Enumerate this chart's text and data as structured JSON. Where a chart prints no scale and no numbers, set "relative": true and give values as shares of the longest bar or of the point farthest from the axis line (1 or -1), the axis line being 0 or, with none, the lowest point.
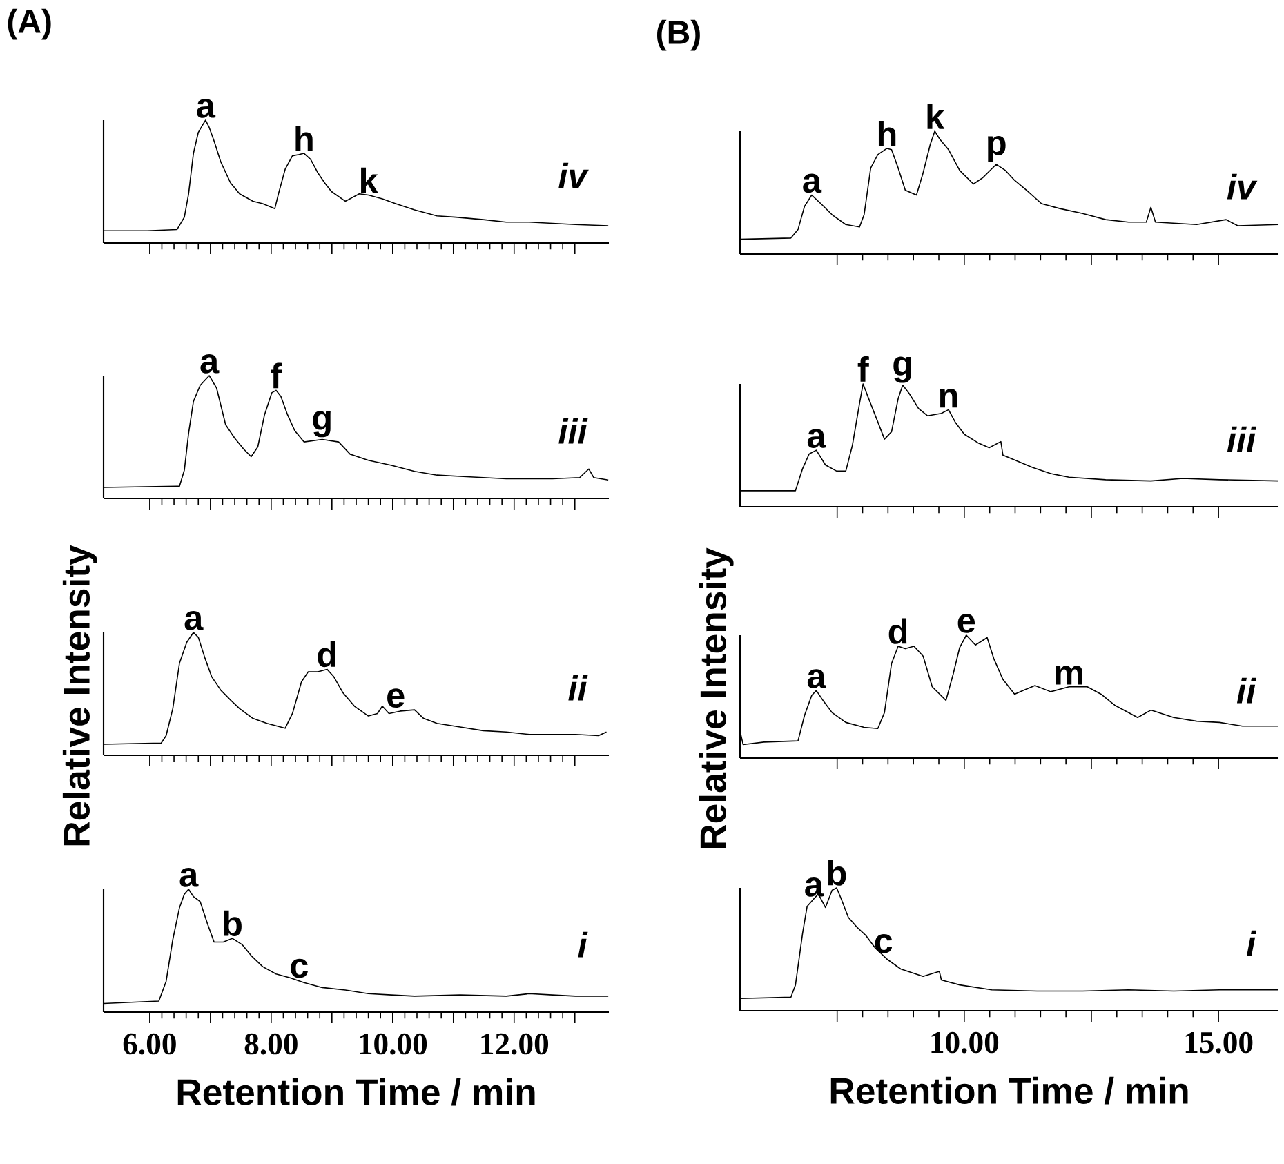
{
  "chart_data": [
    {
      "type": "line",
      "relative": true,
      "title": "(A)",
      "subtitle": "iv",
      "tick_labels": false,
      "xlim": [
        5.24,
        13.56
      ],
      "xticks": [
        {
          "value": 6,
          "label": null
        },
        {
          "value": 7,
          "label": null
        },
        {
          "value": 8,
          "label": null
        },
        {
          "value": 9,
          "label": null
        },
        {
          "value": 10,
          "label": null
        },
        {
          "value": 11,
          "label": null
        },
        {
          "value": 12,
          "label": null
        },
        {
          "value": 13,
          "label": null
        }
      ],
      "x": [
        5.24,
        5.96,
        6.45,
        6.57,
        6.64,
        6.72,
        6.8,
        6.87,
        6.92,
        6.98,
        7.06,
        7.17,
        7.33,
        7.48,
        7.7,
        7.86,
        8.06,
        8.12,
        8.23,
        8.35,
        8.46,
        8.54,
        8.65,
        8.77,
        8.88,
        8.99,
        9.22,
        9.45,
        9.6,
        9.83,
        10.05,
        10.36,
        10.73,
        11.04,
        11.49,
        11.87,
        12.25,
        12.63,
        13.01,
        13.55
      ],
      "series": [
        {
          "color": "#000000",
          "values": [
            0.1,
            0.1,
            0.11,
            0.21,
            0.4,
            0.73,
            0.9,
            0.96,
            1.0,
            0.94,
            0.83,
            0.66,
            0.49,
            0.4,
            0.34,
            0.32,
            0.28,
            0.4,
            0.6,
            0.71,
            0.72,
            0.73,
            0.68,
            0.57,
            0.49,
            0.42,
            0.34,
            0.4,
            0.39,
            0.36,
            0.32,
            0.27,
            0.22,
            0.21,
            0.19,
            0.17,
            0.17,
            0.16,
            0.15,
            0.14
          ]
        }
      ],
      "annotations": [
        {
          "text": "a",
          "x": 6.92,
          "y": 1.0
        },
        {
          "text": "h",
          "x": 8.54,
          "y": 0.73
        },
        {
          "text": "k",
          "x": 9.6,
          "y": 0.39
        }
      ]
    },
    {
      "type": "line",
      "relative": true,
      "subtitle": "iii",
      "tick_labels": false,
      "xlim": [
        5.24,
        13.56
      ],
      "xticks": [
        {
          "value": 6,
          "label": null
        },
        {
          "value": 7,
          "label": null
        },
        {
          "value": 8,
          "label": null
        },
        {
          "value": 9,
          "label": null
        },
        {
          "value": 10,
          "label": null
        },
        {
          "value": 11,
          "label": null
        },
        {
          "value": 12,
          "label": null
        },
        {
          "value": 13,
          "label": null
        }
      ],
      "x": [
        5.24,
        6.49,
        6.57,
        6.64,
        6.72,
        6.83,
        6.98,
        7.1,
        7.25,
        7.4,
        7.55,
        7.67,
        7.78,
        7.89,
        8.01,
        8.08,
        8.16,
        8.27,
        8.39,
        8.54,
        8.84,
        9.11,
        9.3,
        9.6,
        9.98,
        10.36,
        10.73,
        11.11,
        11.49,
        11.87,
        12.25,
        12.63,
        13.08,
        13.23,
        13.31,
        13.55
      ],
      "series": [
        {
          "color": "#000000",
          "values": [
            0.09,
            0.1,
            0.23,
            0.53,
            0.79,
            0.92,
            1.0,
            0.9,
            0.6,
            0.49,
            0.4,
            0.34,
            0.42,
            0.68,
            0.86,
            0.88,
            0.83,
            0.68,
            0.55,
            0.46,
            0.48,
            0.46,
            0.36,
            0.31,
            0.27,
            0.22,
            0.19,
            0.18,
            0.17,
            0.16,
            0.16,
            0.16,
            0.17,
            0.24,
            0.17,
            0.15
          ]
        }
      ],
      "annotations": [
        {
          "text": "a",
          "x": 6.98,
          "y": 1.0
        },
        {
          "text": "f",
          "x": 8.08,
          "y": 0.88
        },
        {
          "text": "g",
          "x": 8.84,
          "y": 0.48
        }
      ]
    },
    {
      "type": "line",
      "relative": true,
      "subtitle": "ii",
      "ylabel": "Relative Intensity",
      "tick_labels": false,
      "xlim": [
        5.24,
        13.56
      ],
      "xticks": [
        {
          "value": 6,
          "label": null
        },
        {
          "value": 7,
          "label": null
        },
        {
          "value": 8,
          "label": null
        },
        {
          "value": 9,
          "label": null
        },
        {
          "value": 10,
          "label": null
        },
        {
          "value": 11,
          "label": null
        },
        {
          "value": 12,
          "label": null
        },
        {
          "value": 13,
          "label": null
        }
      ],
      "x": [
        5.24,
        6.19,
        6.27,
        6.38,
        6.49,
        6.61,
        6.72,
        6.8,
        6.91,
        7.02,
        7.17,
        7.33,
        7.48,
        7.7,
        7.93,
        8.23,
        8.35,
        8.5,
        8.61,
        8.77,
        8.92,
        9.03,
        9.18,
        9.37,
        9.6,
        9.75,
        9.83,
        9.94,
        10.13,
        10.36,
        10.51,
        10.73,
        11.11,
        11.49,
        11.87,
        12.25,
        12.63,
        13.01,
        13.39,
        13.52
      ],
      "series": [
        {
          "color": "#000000",
          "values": [
            0.09,
            0.1,
            0.16,
            0.38,
            0.75,
            0.92,
            1.0,
            0.96,
            0.79,
            0.64,
            0.53,
            0.45,
            0.38,
            0.3,
            0.26,
            0.22,
            0.34,
            0.6,
            0.68,
            0.68,
            0.7,
            0.64,
            0.51,
            0.4,
            0.32,
            0.34,
            0.4,
            0.34,
            0.36,
            0.37,
            0.3,
            0.26,
            0.23,
            0.2,
            0.19,
            0.17,
            0.17,
            0.17,
            0.16,
            0.19
          ]
        }
      ],
      "annotations": [
        {
          "text": "a",
          "x": 6.72,
          "y": 1.0
        },
        {
          "text": "d",
          "x": 8.92,
          "y": 0.7
        },
        {
          "text": "e",
          "x": 10.05,
          "y": 0.37
        }
      ]
    },
    {
      "type": "line",
      "relative": true,
      "subtitle": "i",
      "xlabel": "Retention Time / min",
      "tick_labels": "x",
      "xlim": [
        5.24,
        13.56
      ],
      "xticks": [
        {
          "value": 6,
          "label": "6.00"
        },
        {
          "value": 7,
          "label": null
        },
        {
          "value": 8,
          "label": "8.00"
        },
        {
          "value": 9,
          "label": null
        },
        {
          "value": 10,
          "label": "10.00"
        },
        {
          "value": 11,
          "label": null
        },
        {
          "value": 12,
          "label": "12.00"
        },
        {
          "value": 13,
          "label": null
        }
      ],
      "x": [
        5.24,
        6.15,
        6.27,
        6.38,
        6.49,
        6.57,
        6.64,
        6.72,
        6.83,
        6.95,
        7.06,
        7.21,
        7.36,
        7.52,
        7.67,
        7.86,
        8.08,
        8.31,
        8.54,
        8.84,
        9.22,
        9.6,
        9.98,
        10.36,
        11.11,
        11.87,
        12.25,
        12.63,
        13.01,
        13.55
      ],
      "series": [
        {
          "color": "#000000",
          "values": [
            0.07,
            0.09,
            0.25,
            0.59,
            0.85,
            0.96,
            1.0,
            0.94,
            0.9,
            0.72,
            0.57,
            0.57,
            0.6,
            0.55,
            0.46,
            0.37,
            0.31,
            0.28,
            0.24,
            0.2,
            0.18,
            0.15,
            0.14,
            0.13,
            0.14,
            0.13,
            0.15,
            0.14,
            0.13,
            0.13
          ]
        }
      ],
      "annotations": [
        {
          "text": "a",
          "x": 6.64,
          "y": 1.0
        },
        {
          "text": "b",
          "x": 7.36,
          "y": 0.6
        },
        {
          "text": "c",
          "x": 8.46,
          "y": 0.26
        }
      ]
    },
    {
      "type": "line",
      "relative": true,
      "title": "(B)",
      "subtitle": "iv",
      "tick_labels": false,
      "xlim": [
        5.59,
        16.18
      ],
      "xticks": [
        {
          "value": 7.5,
          "label": null
        },
        {
          "value": 10,
          "label": null
        },
        {
          "value": 12.5,
          "label": null
        },
        {
          "value": 15,
          "label": null
        }
      ],
      "x": [
        5.59,
        6.59,
        6.73,
        6.86,
        7.0,
        7.18,
        7.4,
        7.67,
        7.94,
        8.03,
        8.16,
        8.3,
        8.48,
        8.57,
        8.7,
        8.84,
        9.06,
        9.19,
        9.33,
        9.42,
        9.51,
        9.69,
        9.91,
        10.18,
        10.36,
        10.63,
        10.81,
        10.99,
        11.25,
        11.52,
        11.88,
        12.33,
        12.78,
        13.23,
        13.58,
        13.67,
        13.76,
        14.57,
        15.15,
        15.38,
        16.18
      ],
      "series": [
        {
          "color": "#000000",
          "values": [
            0.12,
            0.13,
            0.2,
            0.39,
            0.48,
            0.41,
            0.32,
            0.24,
            0.22,
            0.32,
            0.7,
            0.81,
            0.86,
            0.85,
            0.7,
            0.52,
            0.48,
            0.66,
            0.89,
            1.0,
            0.94,
            0.85,
            0.68,
            0.57,
            0.62,
            0.73,
            0.68,
            0.6,
            0.51,
            0.41,
            0.37,
            0.33,
            0.28,
            0.26,
            0.26,
            0.38,
            0.26,
            0.24,
            0.28,
            0.23,
            0.24
          ]
        }
      ],
      "annotations": [
        {
          "text": "a",
          "x": 7.0,
          "y": 0.48
        },
        {
          "text": "h",
          "x": 8.48,
          "y": 0.86
        },
        {
          "text": "k",
          "x": 9.42,
          "y": 1.0
        },
        {
          "text": "p",
          "x": 10.63,
          "y": 0.73
        }
      ]
    },
    {
      "type": "line",
      "relative": true,
      "subtitle": "iii",
      "tick_labels": false,
      "xlim": [
        5.59,
        16.18
      ],
      "xticks": [
        {
          "value": 7.5,
          "label": null
        },
        {
          "value": 10,
          "label": null
        },
        {
          "value": 12.5,
          "label": null
        },
        {
          "value": 15,
          "label": null
        }
      ],
      "x": [
        5.59,
        6.68,
        6.82,
        6.95,
        7.09,
        7.27,
        7.49,
        7.67,
        7.8,
        7.94,
        8.01,
        8.12,
        8.3,
        8.43,
        8.57,
        8.7,
        8.79,
        8.92,
        9.1,
        9.28,
        9.55,
        9.69,
        9.82,
        10.0,
        10.27,
        10.49,
        10.72,
        10.76,
        10.99,
        11.34,
        11.7,
        12.06,
        12.78,
        13.67,
        14.3,
        15.02,
        16.18
      ],
      "series": [
        {
          "color": "#000000",
          "values": [
            0.13,
            0.13,
            0.31,
            0.43,
            0.46,
            0.34,
            0.29,
            0.29,
            0.5,
            0.84,
            1.0,
            0.88,
            0.69,
            0.55,
            0.61,
            0.88,
            0.99,
            0.92,
            0.8,
            0.74,
            0.76,
            0.79,
            0.69,
            0.59,
            0.52,
            0.48,
            0.53,
            0.42,
            0.38,
            0.32,
            0.27,
            0.24,
            0.22,
            0.21,
            0.23,
            0.22,
            0.21
          ]
        }
      ],
      "annotations": [
        {
          "text": "a",
          "x": 7.09,
          "y": 0.46
        },
        {
          "text": "f",
          "x": 8.01,
          "y": 1.0
        },
        {
          "text": "g",
          "x": 8.79,
          "y": 0.99
        },
        {
          "text": "n",
          "x": 9.69,
          "y": 0.79
        }
      ]
    },
    {
      "type": "line",
      "relative": true,
      "subtitle": "ii",
      "ylabel": "Relative Intensity",
      "tick_labels": false,
      "xlim": [
        5.59,
        16.18
      ],
      "xticks": [
        {
          "value": 7.5,
          "label": null
        },
        {
          "value": 10,
          "label": null
        },
        {
          "value": 12.5,
          "label": null
        },
        {
          "value": 15,
          "label": null
        }
      ],
      "x": [
        5.59,
        5.65,
        6.06,
        6.73,
        6.86,
        7.0,
        7.09,
        7.22,
        7.4,
        7.67,
        8.03,
        8.3,
        8.43,
        8.57,
        8.7,
        8.84,
        9.01,
        9.19,
        9.37,
        9.64,
        9.78,
        9.91,
        10.04,
        10.22,
        10.45,
        10.58,
        10.76,
        10.99,
        11.16,
        11.39,
        11.7,
        12.06,
        12.42,
        12.69,
        12.96,
        13.41,
        13.67,
        14.12,
        14.57,
        15.02,
        15.47,
        16.18
      ],
      "series": [
        {
          "color": "#000000",
          "values": [
            0.22,
            0.11,
            0.13,
            0.14,
            0.35,
            0.51,
            0.55,
            0.47,
            0.37,
            0.29,
            0.25,
            0.24,
            0.37,
            0.77,
            0.91,
            0.89,
            0.91,
            0.83,
            0.58,
            0.47,
            0.68,
            0.9,
            1.0,
            0.92,
            0.98,
            0.81,
            0.64,
            0.52,
            0.55,
            0.59,
            0.54,
            0.58,
            0.58,
            0.52,
            0.43,
            0.33,
            0.39,
            0.33,
            0.3,
            0.29,
            0.26,
            0.26
          ]
        }
      ],
      "annotations": [
        {
          "text": "a",
          "x": 7.09,
          "y": 0.55
        },
        {
          "text": "d",
          "x": 8.7,
          "y": 0.91
        },
        {
          "text": "e",
          "x": 10.04,
          "y": 1.0
        },
        {
          "text": "m",
          "x": 12.06,
          "y": 0.58
        }
      ]
    },
    {
      "type": "line",
      "relative": true,
      "subtitle": "i",
      "xlabel": "Retention Time / min",
      "tick_labels": "x",
      "xlim": [
        5.59,
        16.18
      ],
      "xticks": [
        {
          "value": 7.5,
          "label": null
        },
        {
          "value": 10,
          "label": "10.00"
        },
        {
          "value": 12.5,
          "label": null
        },
        {
          "value": 15,
          "label": "15.00"
        }
      ],
      "x": [
        5.59,
        6.59,
        6.68,
        6.82,
        6.91,
        7.04,
        7.13,
        7.27,
        7.4,
        7.49,
        7.58,
        7.72,
        7.89,
        8.07,
        8.25,
        8.48,
        8.75,
        9.19,
        9.51,
        9.55,
        9.91,
        10.54,
        11.43,
        12.33,
        13.23,
        14.12,
        15.02,
        16.18
      ],
      "series": [
        {
          "color": "#000000",
          "values": [
            0.1,
            0.11,
            0.21,
            0.63,
            0.85,
            0.91,
            0.95,
            0.84,
            0.98,
            1.0,
            0.91,
            0.76,
            0.68,
            0.61,
            0.51,
            0.42,
            0.34,
            0.28,
            0.32,
            0.25,
            0.21,
            0.17,
            0.16,
            0.16,
            0.17,
            0.16,
            0.17,
            0.17
          ]
        }
      ],
      "annotations": [
        {
          "text": "a",
          "x": 7.04,
          "y": 0.91
        },
        {
          "text": "b",
          "x": 7.49,
          "y": 1.0
        },
        {
          "text": "c",
          "x": 8.41,
          "y": 0.45
        }
      ]
    }
  ]
}
